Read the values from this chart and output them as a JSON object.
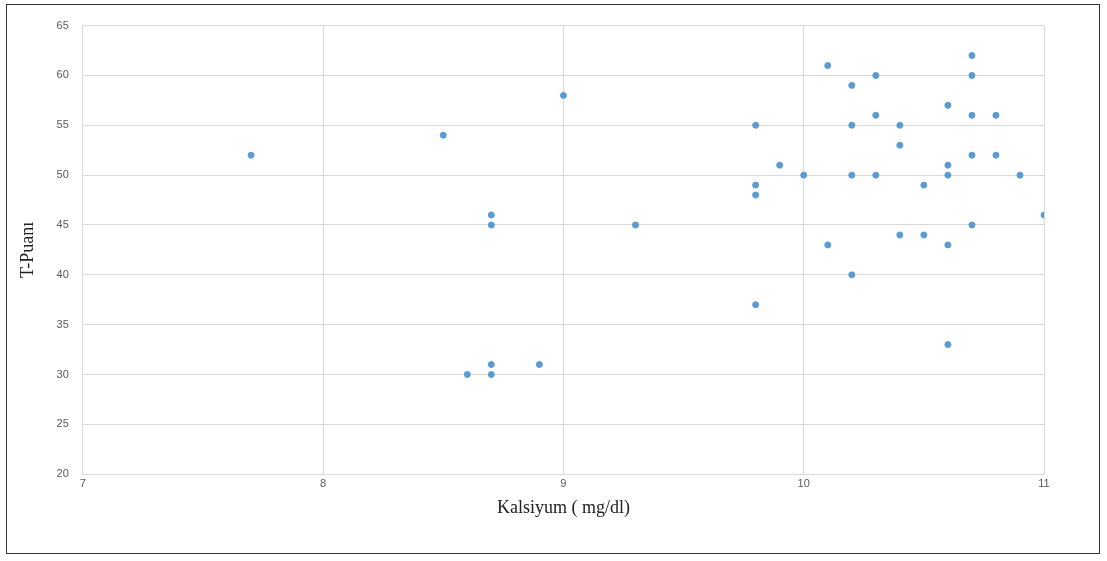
{
  "chart_data": {
    "type": "scatter",
    "xlabel": "Kalsiyum ( mg/dl)",
    "ylabel": "T-Puanı",
    "xlim": [
      7,
      11
    ],
    "xticks": [
      7,
      8,
      9,
      10,
      11
    ],
    "ylim": [
      20,
      65
    ],
    "yticks": [
      20,
      25,
      30,
      35,
      40,
      45,
      50,
      55,
      60,
      65
    ],
    "grid": true,
    "marker": "circle",
    "series": [
      {
        "color": "#5b9bd5",
        "x": [
          7.7,
          8.5,
          9.0,
          8.7,
          8.7,
          9.3,
          8.6,
          8.7,
          8.7,
          8.9,
          9.8,
          9.8,
          9.8,
          9.8,
          9.9,
          10.0,
          10.1,
          10.1,
          10.2,
          10.2,
          10.2,
          10.2,
          10.3,
          10.3,
          10.3,
          10.4,
          10.4,
          10.4,
          10.5,
          10.5,
          10.6,
          10.6,
          10.6,
          10.6,
          10.6,
          10.7,
          10.7,
          10.7,
          10.7,
          10.7,
          10.8,
          10.8,
          10.9,
          11.0
        ],
        "values": [
          52,
          54,
          58,
          46,
          45,
          45,
          30,
          31,
          30,
          31,
          55,
          49,
          48,
          37,
          51,
          50,
          61,
          43,
          59,
          55,
          50,
          40,
          60,
          56,
          50,
          55,
          53,
          44,
          49,
          44,
          57,
          51,
          50,
          43,
          33,
          62,
          60,
          56,
          52,
          45,
          56,
          52,
          50,
          46
        ]
      }
    ]
  }
}
